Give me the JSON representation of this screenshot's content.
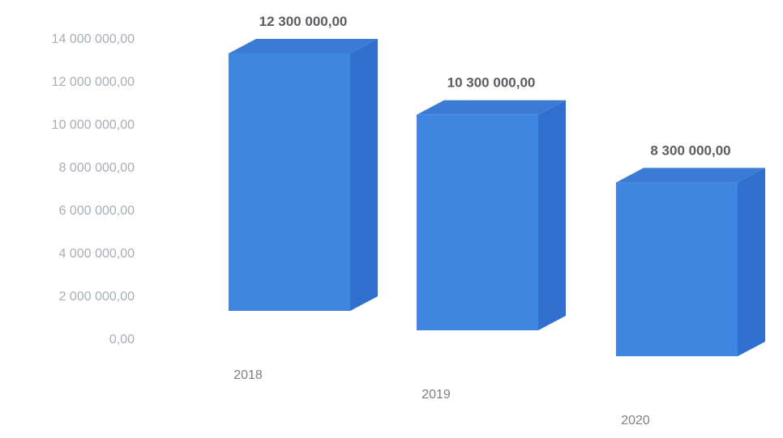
{
  "chart_data": {
    "type": "bar",
    "style": "3d-column",
    "title": "",
    "xlabel": "",
    "ylabel": "",
    "categories": [
      "2018",
      "2019",
      "2020"
    ],
    "values": [
      12300000,
      10300000,
      8300000
    ],
    "data_labels": [
      "12 300 000,00",
      "10 300 000,00",
      "8 300 000,00"
    ],
    "ylim": [
      0,
      14000000
    ],
    "y_ticks": [
      0,
      2000000,
      4000000,
      6000000,
      8000000,
      10000000,
      12000000,
      14000000
    ],
    "y_tick_labels": [
      "0,00",
      "2 000 000,00",
      "4 000 000,00",
      "6 000 000,00",
      "8 000 000,00",
      "10 000 000,00",
      "12 000 000,00",
      "14 000 000,00"
    ],
    "grid": false,
    "legend": "none",
    "colors": {
      "front": "#3f86e0",
      "top": "#3a7bd6",
      "side": "#2f6fcf"
    }
  }
}
